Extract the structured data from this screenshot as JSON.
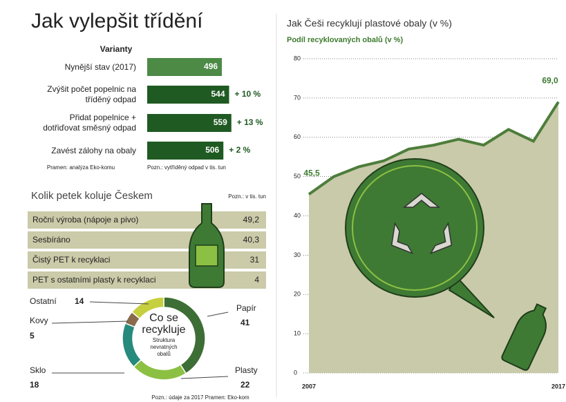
{
  "header": {
    "title": "Jak vylepšit třídění"
  },
  "chart_data": [
    {
      "type": "bar",
      "orientation": "horizontal",
      "axis_title": "Varianty",
      "categories": [
        "Nynější stav (2017)",
        "Zvýšit počet popelnic na\ntříděný odpad",
        "Přidat popelnice +\ndotřiďovat směsný odpad",
        "Zavést zálohy na obaly"
      ],
      "values": [
        496,
        544,
        559,
        506
      ],
      "colors": [
        "#4c8a46",
        "#1f5a22",
        "#1f5a22",
        "#1f5a22"
      ],
      "annotations": [
        null,
        "+ 10 %",
        "+ 13 %",
        "+ 2 %"
      ],
      "xlim": [
        0,
        560
      ],
      "notes": [
        "Pramen: analýza Eko-komu",
        "Pozn.: vytříděný odpad v tis. tun"
      ]
    },
    {
      "type": "table",
      "title": "Kolik petek koluje Českem",
      "note": "Pozn.: v tis. tun",
      "rows": [
        [
          "Roční výroba (nápoje a pivo)",
          "49,2"
        ],
        [
          "Sesbíráno",
          "40,3"
        ],
        [
          "Čistý PET k recyklaci",
          "31"
        ],
        [
          "PET s ostatními plasty k recyklaci",
          "4"
        ]
      ],
      "color": "#cbcaa9"
    },
    {
      "type": "pie",
      "title": "Co se\nrecykluje",
      "subtitle": "Struktura\nnevratných\nobalů",
      "categories": [
        "Papír",
        "Plasty",
        "Sklo",
        "Kovy",
        "Ostatní"
      ],
      "values": [
        41,
        22,
        18,
        5,
        14
      ],
      "colors": [
        "#3d6e35",
        "#8cc043",
        "#268a7c",
        "#8a6a4c",
        "#c6cf3e"
      ],
      "note": "Pozn.: údaje za 2017 Pramen: Eko-kom"
    },
    {
      "type": "area",
      "title": "Jak Češi recyklují plastové obaly (v %)",
      "subtitle": "Podíl recyklovaných obalů (v %)",
      "x": [
        2007,
        2008,
        2009,
        2010,
        2011,
        2012,
        2013,
        2014,
        2015,
        2016,
        2017
      ],
      "values": [
        45.5,
        50,
        52.5,
        54,
        57,
        58,
        59.5,
        58,
        62,
        59,
        69.0
      ],
      "value_labels": [
        "45,5",
        null,
        null,
        null,
        null,
        null,
        null,
        null,
        null,
        null,
        "69,0"
      ],
      "xlim": [
        2007,
        2017
      ],
      "xticks": [
        2007,
        2017
      ],
      "ylim": [
        0,
        80
      ],
      "yticks": [
        0,
        10,
        20,
        30,
        40,
        50,
        60,
        70,
        80
      ],
      "grid": true,
      "color": "#4d7d3b",
      "fill": "#c8caa9"
    }
  ]
}
